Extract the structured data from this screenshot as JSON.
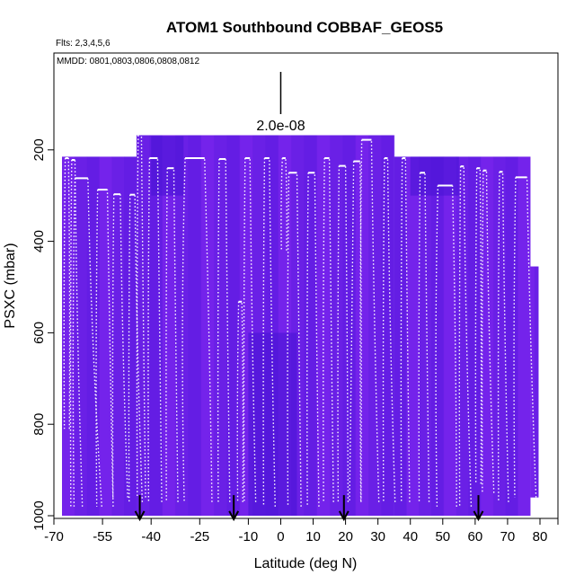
{
  "chart_data": {
    "type": "heatmap",
    "title": "ATOM1 Southbound COBBAF_GEOS5",
    "flights_note": "Flts: 2,3,4,5,6",
    "dates_note": "MMDD: 0801,0803,0806,0808,0812",
    "xlabel": "Latitude (deg N)",
    "ylabel": "PSXC (mbar)",
    "xlim": [
      -70,
      82
    ],
    "ylim": [
      1000,
      0
    ],
    "x_ticks": [
      -70,
      -55,
      -40,
      -25,
      -10,
      0,
      10,
      20,
      30,
      40,
      50,
      60,
      70,
      80
    ],
    "x_tick_labels": [
      "-70",
      "-55",
      "-40",
      "-25",
      "-10",
      "0",
      "10",
      "20",
      "30",
      "40",
      "50",
      "60",
      "70",
      "80"
    ],
    "y_ticks": [
      200,
      400,
      600,
      800,
      1000
    ],
    "y_tick_labels": [
      "200",
      "400",
      "600",
      "800",
      "1000"
    ],
    "scale_bar_label": "2.0e-08",
    "scale_bar_x": 0,
    "colors": {
      "fill_dark": "#4a14d6",
      "fill_mid": "#6a20e6",
      "fill_light": "#7c26ee",
      "track": "#ffffff",
      "axis": "#000000"
    },
    "domain_blocks": [
      {
        "lat_start": -67.5,
        "lat_end": -44.5,
        "p_top": 215,
        "p_bottom": 1000
      },
      {
        "lat_start": -44.5,
        "lat_end": 35.0,
        "p_top": 168,
        "p_bottom": 1000
      },
      {
        "lat_start": 35.0,
        "lat_end": 77.0,
        "p_top": 215,
        "p_bottom": 1000
      },
      {
        "lat_start": 77.0,
        "lat_end": 79.5,
        "p_top": 455,
        "p_bottom": 960
      }
    ],
    "dark_regions": [
      {
        "lat_start": -10,
        "lat_end": 5,
        "p_top": 600,
        "p_bottom": 1000
      },
      {
        "lat_start": -40,
        "lat_end": -30,
        "p_top": 170,
        "p_bottom": 300
      },
      {
        "lat_start": 40,
        "lat_end": 55,
        "p_top": 215,
        "p_bottom": 300
      }
    ],
    "profiles": [
      {
        "lat_top_start": -66.5,
        "lat_top_end": -65.5,
        "p_top": 218,
        "p_bottom": 810,
        "lat_bottom": -66.5
      },
      {
        "lat_top_start": -64.5,
        "lat_top_end": -63.5,
        "p_top": 222,
        "p_bottom": 980,
        "lat_bottom": -61.5
      },
      {
        "lat_top_start": -63.5,
        "lat_top_end": -59.5,
        "p_top": 262,
        "p_bottom": 980,
        "lat_bottom": -55.5
      },
      {
        "lat_top_start": -56.5,
        "lat_top_end": -53.5,
        "p_top": 287,
        "p_bottom": 980,
        "lat_bottom": -52.0
      },
      {
        "lat_top_start": -51.5,
        "lat_top_end": -49.5,
        "p_top": 297,
        "p_bottom": 960,
        "lat_bottom": -47.5
      },
      {
        "lat_top_start": -46.5,
        "lat_top_end": -45.0,
        "p_top": 298,
        "p_bottom": 970,
        "lat_bottom": -43.0
      },
      {
        "lat_top_start": -44.0,
        "lat_top_end": -43.0,
        "p_top": 160,
        "p_bottom": 960,
        "lat_bottom": -42.0
      },
      {
        "lat_top_start": -40.5,
        "lat_top_end": -38.0,
        "p_top": 218,
        "p_bottom": 970,
        "lat_bottom": -37.0
      },
      {
        "lat_top_start": -35.0,
        "lat_top_end": -33.0,
        "p_top": 240,
        "p_bottom": 970,
        "lat_bottom": -32.0
      },
      {
        "lat_top_start": -29.5,
        "lat_top_end": -23.5,
        "p_top": 218,
        "p_bottom": 970,
        "lat_bottom": -21.5
      },
      {
        "lat_top_start": -19.0,
        "lat_top_end": -17.0,
        "p_top": 220,
        "p_bottom": 970,
        "lat_bottom": -16.0
      },
      {
        "lat_top_start": -13.0,
        "lat_top_end": -12.0,
        "p_top": 532,
        "p_bottom": 970,
        "lat_bottom": -12.5
      },
      {
        "lat_top_start": -11.0,
        "lat_top_end": -9.5,
        "p_top": 218,
        "p_bottom": 970,
        "lat_bottom": -8.0
      },
      {
        "lat_top_start": -5.0,
        "lat_top_end": -3.5,
        "p_top": 218,
        "p_bottom": 980,
        "lat_bottom": -2.0
      },
      {
        "lat_top_start": 0.5,
        "lat_top_end": 1.5,
        "p_top": 218,
        "p_bottom": 420,
        "lat_bottom": 0.5
      },
      {
        "lat_top_start": 2.5,
        "lat_top_end": 5.0,
        "p_top": 250,
        "p_bottom": 980,
        "lat_bottom": 6.0
      },
      {
        "lat_top_start": 8.5,
        "lat_top_end": 10.5,
        "p_top": 250,
        "p_bottom": 980,
        "lat_bottom": 11.5
      },
      {
        "lat_top_start": 13.5,
        "lat_top_end": 15.0,
        "p_top": 218,
        "p_bottom": 970,
        "lat_bottom": 16.0
      },
      {
        "lat_top_start": 18.0,
        "lat_top_end": 20.0,
        "p_top": 235,
        "p_bottom": 970,
        "lat_bottom": 20.5
      },
      {
        "lat_top_start": 22.5,
        "lat_top_end": 24.5,
        "p_top": 225,
        "p_bottom": 970,
        "lat_bottom": 21.5
      },
      {
        "lat_top_start": 25.0,
        "lat_top_end": 28.0,
        "p_top": 178,
        "p_bottom": 970,
        "lat_bottom": 30.0
      },
      {
        "lat_top_start": 32.0,
        "lat_top_end": 33.0,
        "p_top": 218,
        "p_bottom": 970,
        "lat_bottom": 35.0
      },
      {
        "lat_top_start": 37.5,
        "lat_top_end": 38.5,
        "p_top": 218,
        "p_bottom": 970,
        "lat_bottom": 39.5
      },
      {
        "lat_top_start": 43.0,
        "lat_top_end": 44.5,
        "p_top": 250,
        "p_bottom": 970,
        "lat_bottom": 45.5
      },
      {
        "lat_top_start": 48.5,
        "lat_top_end": 53.0,
        "p_top": 278,
        "p_bottom": 980,
        "lat_bottom": 54.0
      },
      {
        "lat_top_start": 55.5,
        "lat_top_end": 56.5,
        "p_top": 236,
        "p_bottom": 980,
        "lat_bottom": 58.5
      },
      {
        "lat_top_start": 60.5,
        "lat_top_end": 61.5,
        "p_top": 240,
        "p_bottom": 930,
        "lat_bottom": 61.0
      },
      {
        "lat_top_start": 62.5,
        "lat_top_end": 63.5,
        "p_top": 245,
        "p_bottom": 950,
        "lat_bottom": 65.5
      },
      {
        "lat_top_start": 67.5,
        "lat_top_end": 68.5,
        "p_top": 248,
        "p_bottom": 970,
        "lat_bottom": 70.0
      },
      {
        "lat_top_start": 72.5,
        "lat_top_end": 76.0,
        "p_top": 260,
        "p_bottom": 960,
        "lat_bottom": 78.5
      }
    ],
    "markers": [
      {
        "lat": -43.5,
        "label": ""
      },
      {
        "lat": -14.5,
        "label": ""
      },
      {
        "lat": 19.5,
        "label": ""
      },
      {
        "lat": 61.0,
        "label": ""
      }
    ]
  }
}
